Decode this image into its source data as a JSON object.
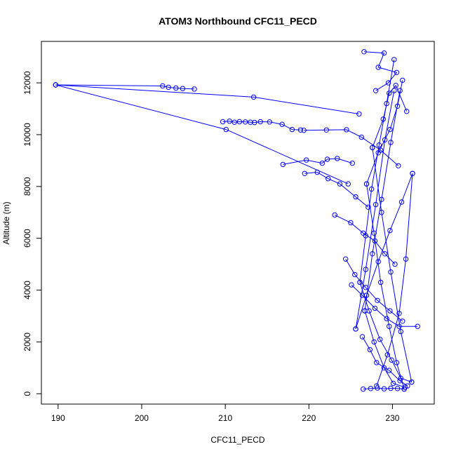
{
  "chart_data": {
    "type": "line",
    "title": "ATOM3 Northbound CFC11_PECD",
    "xlabel": "CFC11_PECD",
    "ylabel": "Altitude (m)",
    "xlim": [
      188,
      235
    ],
    "ylim": [
      -400,
      13600
    ],
    "xticks": [
      190,
      200,
      210,
      220,
      230
    ],
    "yticks": [
      0,
      2000,
      4000,
      6000,
      8000,
      10000,
      12000
    ],
    "grid": false,
    "legend": "none",
    "markers": "open-circle",
    "series_color": "#0000ff",
    "series": [
      {
        "x": [
          226.6,
          229.0,
          228.3,
          230.5,
          229.5,
          228.0
        ],
        "y": [
          13200,
          13150,
          12600,
          12400,
          12000,
          11700
        ]
      },
      {
        "x": [
          189.7,
          202.5,
          203.2,
          204.1,
          204.9,
          206.3
        ],
        "y": [
          11920,
          11880,
          11830,
          11800,
          11780,
          11760
        ]
      },
      {
        "x": [
          189.7,
          213.4,
          226.0
        ],
        "y": [
          11920,
          11450,
          10800
        ]
      },
      {
        "x": [
          189.7,
          210.1,
          224.7
        ],
        "y": [
          11920,
          10200,
          8100
        ]
      },
      {
        "x": [
          209.7,
          210.5,
          211.1,
          211.7,
          212.4,
          213.0,
          213.5,
          214.2,
          215.3,
          216.8,
          218.0,
          219.0
        ],
        "y": [
          10500,
          10520,
          10480,
          10500,
          10490,
          10480,
          10470,
          10500,
          10490,
          10400,
          10200,
          10180
        ]
      },
      {
        "x": [
          219.4,
          222.1,
          224.5,
          226.3,
          228.6,
          230.7
        ],
        "y": [
          10170,
          10180,
          10190,
          9900,
          9400,
          8800
        ]
      },
      {
        "x": [
          216.9,
          219.7,
          221.6,
          222.2,
          223.4,
          225.2
        ],
        "y": [
          8850,
          9020,
          8900,
          9050,
          9080,
          8900
        ]
      },
      {
        "x": [
          219.5,
          221.0,
          222.3,
          223.7,
          225.6,
          227.1
        ],
        "y": [
          8500,
          8550,
          8300,
          8100,
          7600,
          7200
        ]
      },
      {
        "x": [
          223.1,
          225.0,
          226.5,
          227.9,
          229.1,
          230.3
        ],
        "y": [
          6900,
          6600,
          6200,
          5900,
          5400,
          5000
        ]
      },
      {
        "x": [
          224.4,
          225.5,
          226.8,
          228.2,
          229.7,
          231.2
        ],
        "y": [
          5200,
          4600,
          4100,
          3600,
          3200,
          2800
        ]
      },
      {
        "x": [
          225.1,
          226.4,
          227.9,
          229.3,
          230.8,
          233.0
        ],
        "y": [
          4200,
          3800,
          3300,
          2900,
          2600,
          2600
        ]
      },
      {
        "x": [
          226.4,
          227.3,
          228.1,
          229.6,
          230.9,
          231.8
        ],
        "y": [
          2200,
          1700,
          1200,
          900,
          500,
          300
        ]
      },
      {
        "x": [
          226.5,
          227.4,
          228.2,
          229.0,
          229.8,
          230.6,
          231.4
        ],
        "y": [
          180,
          200,
          220,
          190,
          210,
          200,
          180
        ]
      },
      {
        "x": [
          231.4,
          230.5,
          229.6,
          228.6,
          227.8,
          226.9
        ],
        "y": [
          180,
          1200,
          2600,
          4300,
          6200,
          8100
        ]
      },
      {
        "x": [
          226.9,
          228.3,
          229.7,
          230.6,
          231.2
        ],
        "y": [
          8100,
          9300,
          10200,
          11100,
          12100
        ]
      },
      {
        "x": [
          230.2,
          229.3,
          228.4,
          227.5,
          226.8,
          226.1
        ],
        "y": [
          12900,
          11200,
          9600,
          7900,
          6100,
          4300
        ]
      },
      {
        "x": [
          226.1,
          227.2,
          228.5,
          229.9,
          231.0,
          232.3
        ],
        "y": [
          4300,
          3200,
          2100,
          1300,
          600,
          450
        ]
      },
      {
        "x": [
          232.3,
          231.0,
          229.8,
          228.7,
          227.6
        ],
        "y": [
          450,
          2400,
          4700,
          7000,
          9500
        ]
      },
      {
        "x": [
          227.6,
          228.9,
          229.6,
          230.4,
          231.7
        ],
        "y": [
          9500,
          10600,
          11600,
          11900,
          10900
        ]
      },
      {
        "x": [
          228.1,
          229.4,
          230.8,
          231.6,
          232.4
        ],
        "y": [
          300,
          1500,
          3100,
          5200,
          8500
        ]
      },
      {
        "x": [
          232.4,
          231.1,
          229.7,
          228.3,
          226.9,
          225.6
        ],
        "y": [
          8500,
          7400,
          6300,
          5100,
          3800,
          2500
        ]
      },
      {
        "x": [
          225.6,
          226.8,
          228.0,
          229.1,
          230.2
        ],
        "y": [
          2500,
          4800,
          7300,
          9800,
          11700
        ]
      },
      {
        "x": [
          230.9,
          229.8,
          228.7,
          227.6,
          226.7
        ],
        "y": [
          11700,
          9700,
          7500,
          5400,
          3200
        ]
      },
      {
        "x": [
          226.7,
          227.8,
          229.0,
          230.1,
          231.5
        ],
        "y": [
          3200,
          2000,
          1000,
          400,
          250
        ]
      }
    ]
  }
}
